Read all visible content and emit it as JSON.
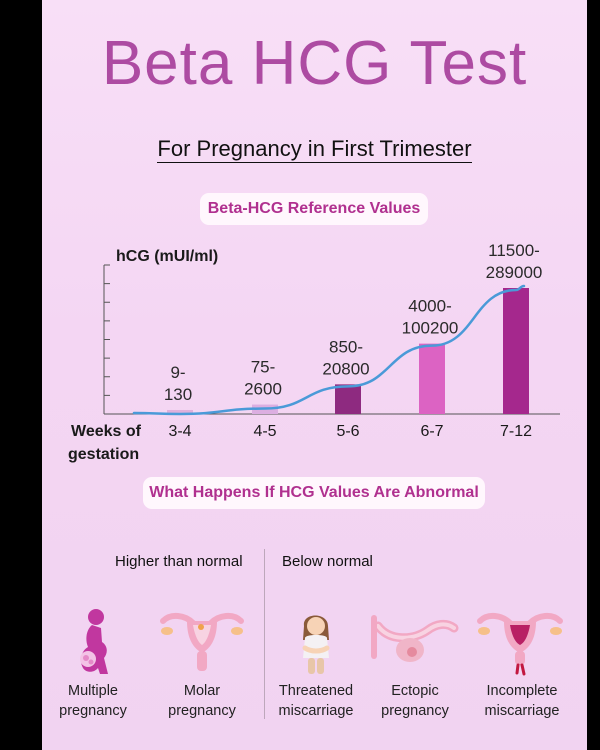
{
  "header": {
    "title": "Beta HCG Test",
    "subtitle": "For Pregnancy in First Trimester"
  },
  "chart_section": {
    "heading": "Beta-HCG Reference Values"
  },
  "chart_data": {
    "type": "bar",
    "ylabel": "hCG (mUI/ml)",
    "xlabel_lines": [
      "Weeks of",
      "gestation"
    ],
    "categories": [
      "3-4",
      "4-5",
      "5-6",
      "6-7",
      "7-12"
    ],
    "value_labels": [
      [
        "9-",
        "130"
      ],
      [
        "75-",
        "2600"
      ],
      [
        "850-",
        "20800"
      ],
      [
        "4000-",
        "100200"
      ],
      [
        "11500-",
        "289000"
      ]
    ],
    "ranges": [
      [
        9,
        130
      ],
      [
        75,
        2600
      ],
      [
        850,
        20800
      ],
      [
        4000,
        100200
      ],
      [
        11500,
        289000
      ]
    ],
    "bar_colors": [
      "#e0b0dc",
      "#dcaee1",
      "#8e2a80",
      "#dc63c3",
      "#a5288d"
    ],
    "trend_color": "#4a9ad8",
    "y_axis_ticks_labeled": false,
    "grid": false
  },
  "abnormal_section": {
    "heading": "What Happens If HCG Values Are Abnormal",
    "higher_heading": "Higher than normal",
    "below_heading": "Below normal",
    "conditions": [
      {
        "label": "Multiple\npregnancy",
        "icon": "pregnant-woman-icon"
      },
      {
        "label": "Molar\npregnancy",
        "icon": "uterus-icon"
      },
      {
        "label": "Threatened\nmiscarriage",
        "icon": "woman-abdominal-pain-icon"
      },
      {
        "label": "Ectopic\npregnancy",
        "icon": "fallopian-tube-icon"
      },
      {
        "label": "Incomplete\nmiscarriage",
        "icon": "uterus-bleeding-icon"
      }
    ]
  },
  "colors": {
    "title": "#ad4ba2",
    "accent": "#b0308f",
    "background": "#f6dbf5"
  }
}
